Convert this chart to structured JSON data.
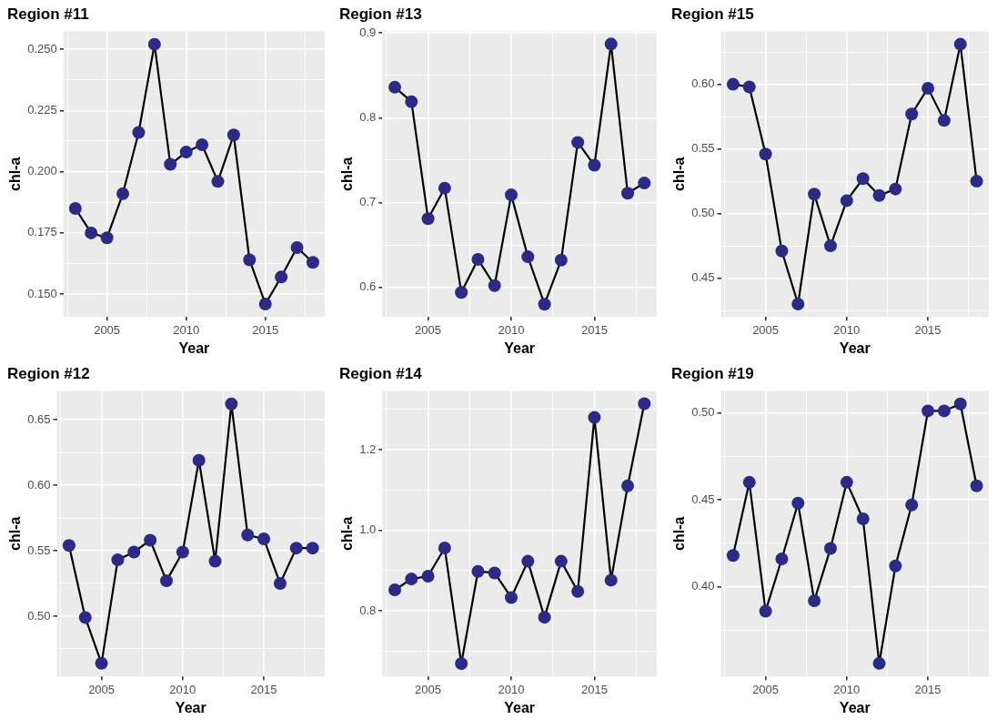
{
  "chart_data": [
    {
      "type": "line",
      "title": "Region #11",
      "xlabel": "Year",
      "ylabel": "chl-a",
      "marker": "circle",
      "grid": true,
      "x": [
        2003,
        2004,
        2005,
        2006,
        2007,
        2008,
        2009,
        2010,
        2011,
        2012,
        2013,
        2014,
        2015,
        2016,
        2017,
        2018
      ],
      "xlim": [
        2002.25,
        2018.75
      ],
      "xticks": [
        {
          "value": 2002.5,
          "label": null
        },
        2005,
        {
          "value": 2007.5,
          "label": null
        },
        2010,
        {
          "value": 2012.5,
          "label": null
        },
        2015,
        {
          "value": 2017.5,
          "label": null
        }
      ],
      "ylim": [
        0.1407,
        0.2573
      ],
      "yticks": [
        {
          "value": 0.15,
          "label": "0.150"
        },
        {
          "value": 0.1625,
          "label": null
        },
        {
          "value": 0.175,
          "label": "0.175"
        },
        {
          "value": 0.1875,
          "label": null
        },
        {
          "value": 0.2,
          "label": "0.200"
        },
        {
          "value": 0.2125,
          "label": null
        },
        {
          "value": 0.225,
          "label": "0.225"
        },
        {
          "value": 0.2375,
          "label": null
        },
        {
          "value": 0.25,
          "label": "0.250"
        }
      ],
      "series": [
        {
          "color": "#2b2a86",
          "values": [
            0.185,
            0.175,
            0.173,
            0.191,
            0.216,
            0.252,
            0.203,
            0.208,
            0.211,
            0.196,
            0.215,
            0.164,
            0.146,
            0.157,
            0.169,
            0.163
          ]
        }
      ]
    },
    {
      "type": "line",
      "title": "Region #13",
      "xlabel": "Year",
      "ylabel": "chl-a",
      "marker": "circle",
      "grid": true,
      "x": [
        2003,
        2004,
        2005,
        2006,
        2007,
        2008,
        2009,
        2010,
        2011,
        2012,
        2013,
        2014,
        2015,
        2016,
        2017,
        2018
      ],
      "xlim": [
        2002.25,
        2018.75
      ],
      "xticks": [
        {
          "value": 2002.5,
          "label": null
        },
        2005,
        {
          "value": 2007.5,
          "label": null
        },
        2010,
        {
          "value": 2012.5,
          "label": null
        },
        2015,
        {
          "value": 2017.5,
          "label": null
        }
      ],
      "ylim": [
        0.565,
        0.902
      ],
      "yticks": [
        0.6,
        {
          "value": 0.65,
          "label": null
        },
        0.7,
        {
          "value": 0.75,
          "label": null
        },
        0.8,
        {
          "value": 0.85,
          "label": null
        },
        0.9
      ],
      "series": [
        {
          "color": "#2b2a86",
          "values": [
            0.836,
            0.819,
            0.681,
            0.717,
            0.594,
            0.633,
            0.602,
            0.709,
            0.636,
            0.58,
            0.632,
            0.771,
            0.744,
            0.887,
            0.711,
            0.723
          ]
        }
      ]
    },
    {
      "type": "line",
      "title": "Region #15",
      "xlabel": "Year",
      "ylabel": "chl-a",
      "marker": "circle",
      "grid": true,
      "x": [
        2003,
        2004,
        2005,
        2006,
        2007,
        2008,
        2009,
        2010,
        2011,
        2012,
        2013,
        2014,
        2015,
        2016,
        2017,
        2018
      ],
      "xlim": [
        2002.25,
        2018.75
      ],
      "xticks": [
        {
          "value": 2002.5,
          "label": null
        },
        2005,
        {
          "value": 2007.5,
          "label": null
        },
        2010,
        {
          "value": 2012.5,
          "label": null
        },
        2015,
        {
          "value": 2017.5,
          "label": null
        }
      ],
      "ylim": [
        0.42,
        0.641
      ],
      "yticks": [
        {
          "value": 0.425,
          "label": null
        },
        0.45,
        {
          "value": 0.475,
          "label": null
        },
        {
          "value": 0.5,
          "label": "0.50"
        },
        {
          "value": 0.525,
          "label": null
        },
        0.55,
        {
          "value": 0.575,
          "label": null
        },
        {
          "value": 0.6,
          "label": "0.60"
        },
        {
          "value": 0.625,
          "label": null
        }
      ],
      "series": [
        {
          "color": "#2b2a86",
          "values": [
            0.6,
            0.598,
            0.546,
            0.471,
            0.43,
            0.515,
            0.475,
            0.51,
            0.527,
            0.514,
            0.519,
            0.577,
            0.597,
            0.572,
            0.631,
            0.525
          ]
        }
      ]
    },
    {
      "type": "line",
      "title": "Region #12",
      "xlabel": "Year",
      "ylabel": "chl-a",
      "marker": "circle",
      "grid": true,
      "x": [
        2003,
        2004,
        2005,
        2006,
        2007,
        2008,
        2009,
        2010,
        2011,
        2012,
        2013,
        2014,
        2015,
        2016,
        2017,
        2018
      ],
      "xlim": [
        2002.25,
        2018.75
      ],
      "xticks": [
        {
          "value": 2002.5,
          "label": null
        },
        2005,
        {
          "value": 2007.5,
          "label": null
        },
        2010,
        {
          "value": 2012.5,
          "label": null
        },
        2015,
        {
          "value": 2017.5,
          "label": null
        }
      ],
      "ylim": [
        0.454,
        0.672
      ],
      "yticks": [
        {
          "value": 0.475,
          "label": null
        },
        {
          "value": 0.5,
          "label": "0.50"
        },
        {
          "value": 0.525,
          "label": null
        },
        0.55,
        {
          "value": 0.575,
          "label": null
        },
        {
          "value": 0.6,
          "label": "0.60"
        },
        {
          "value": 0.625,
          "label": null
        },
        0.65
      ],
      "series": [
        {
          "color": "#2b2a86",
          "values": [
            0.554,
            0.499,
            0.464,
            0.543,
            0.549,
            0.558,
            0.527,
            0.549,
            0.619,
            0.542,
            0.662,
            0.562,
            0.559,
            0.525,
            0.552,
            0.552
          ]
        }
      ]
    },
    {
      "type": "line",
      "title": "Region #14",
      "xlabel": "Year",
      "ylabel": "chl-a",
      "marker": "circle",
      "grid": true,
      "x": [
        2003,
        2004,
        2005,
        2006,
        2007,
        2008,
        2009,
        2010,
        2011,
        2012,
        2013,
        2014,
        2015,
        2016,
        2017,
        2018
      ],
      "xlim": [
        2002.25,
        2018.75
      ],
      "xticks": [
        {
          "value": 2002.5,
          "label": null
        },
        2005,
        {
          "value": 2007.5,
          "label": null
        },
        2010,
        {
          "value": 2012.5,
          "label": null
        },
        2015,
        {
          "value": 2017.5,
          "label": null
        }
      ],
      "ylim": [
        0.637,
        1.346
      ],
      "yticks": [
        {
          "value": 0.7,
          "label": null
        },
        0.8,
        {
          "value": 0.9,
          "label": null
        },
        {
          "value": 1.0,
          "label": "1.0"
        },
        {
          "value": 1.1,
          "label": null
        },
        1.2,
        {
          "value": 1.3,
          "label": null
        }
      ],
      "series": [
        {
          "color": "#2b2a86",
          "values": [
            0.852,
            0.879,
            0.886,
            0.956,
            0.669,
            0.898,
            0.894,
            0.833,
            0.923,
            0.784,
            0.923,
            0.848,
            1.28,
            0.876,
            1.11,
            1.314
          ]
        }
      ]
    },
    {
      "type": "line",
      "title": "Region #19",
      "xlabel": "Year",
      "ylabel": "chl-a",
      "marker": "circle",
      "grid": true,
      "x": [
        2003,
        2004,
        2005,
        2006,
        2007,
        2008,
        2009,
        2010,
        2011,
        2012,
        2013,
        2014,
        2015,
        2016,
        2017,
        2018
      ],
      "xlim": [
        2002.25,
        2018.75
      ],
      "xticks": [
        {
          "value": 2002.5,
          "label": null
        },
        2005,
        {
          "value": 2007.5,
          "label": null
        },
        2010,
        {
          "value": 2012.5,
          "label": null
        },
        2015,
        {
          "value": 2017.5,
          "label": null
        }
      ],
      "ylim": [
        0.3485,
        0.5125
      ],
      "yticks": [
        {
          "value": 0.375,
          "label": null
        },
        {
          "value": 0.4,
          "label": "0.40"
        },
        {
          "value": 0.425,
          "label": null
        },
        0.45,
        {
          "value": 0.475,
          "label": null
        },
        {
          "value": 0.5,
          "label": "0.50"
        }
      ],
      "series": [
        {
          "color": "#2b2a86",
          "values": [
            0.418,
            0.46,
            0.386,
            0.416,
            0.448,
            0.392,
            0.422,
            0.46,
            0.439,
            0.356,
            0.412,
            0.447,
            0.501,
            0.501,
            0.505,
            0.458
          ]
        }
      ]
    }
  ]
}
